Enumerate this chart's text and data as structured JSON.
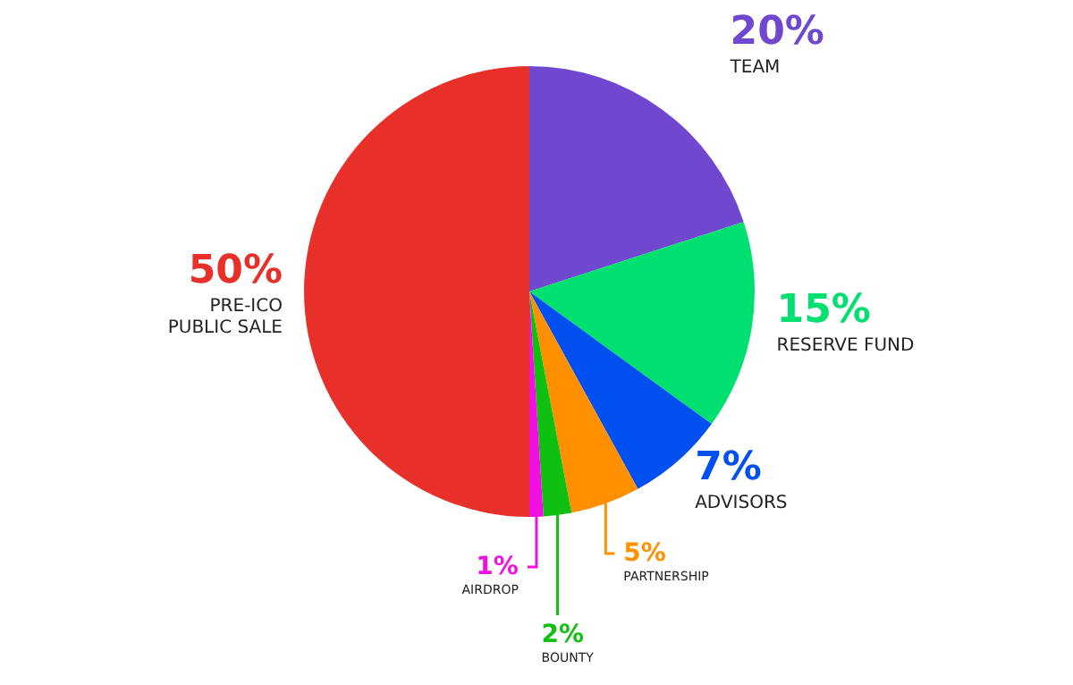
{
  "chart_data": {
    "type": "pie",
    "categories": [
      "TEAM",
      "RESERVE FUND",
      "ADVISORS",
      "PARTNERSHIP",
      "BOUNTY",
      "AIRDROP",
      "PRE-ICO\nPUBLIC SALE"
    ],
    "values": [
      20,
      15,
      7,
      5,
      2,
      1,
      50
    ],
    "value_labels": [
      "20%",
      "15%",
      "7%",
      "5%",
      "2%",
      "1%",
      "50%"
    ],
    "colors": [
      "#7048d0",
      "#00e070",
      "#0050f0",
      "#ff9000",
      "#10c010",
      "#f010e0",
      "#e8302a"
    ],
    "legend": false
  }
}
